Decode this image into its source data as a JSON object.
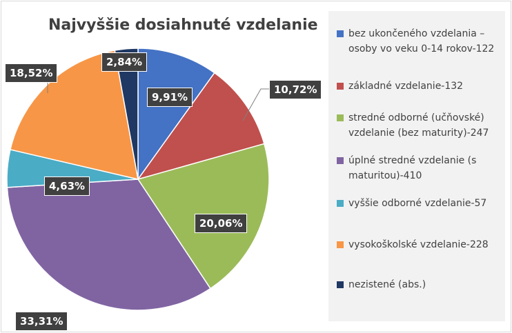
{
  "chart_data": {
    "type": "pie",
    "title": "Najvyššie dosiahnuté vzdelanie",
    "legend_position": "right",
    "slices": [
      {
        "name": "bez ukončeného vzdelania – osoby vo veku 0-14 rokov-122",
        "label": "9,91%",
        "value": 9.91,
        "color": "#4472c4"
      },
      {
        "name": "základné vzdelanie-132",
        "label": "10,72%",
        "value": 10.72,
        "color": "#c0504d"
      },
      {
        "name": "stredné odborné (učňovské) vzdelanie (bez maturity)-247",
        "label": "20,06%",
        "value": 20.06,
        "color": "#9bbb59"
      },
      {
        "name": "úplné stredné vzdelanie (s maturitou)-410",
        "label": "33,31%",
        "value": 33.31,
        "color": "#8064a2"
      },
      {
        "name": "vyššie odborné vzdelanie-57",
        "label": "4,63%",
        "value": 4.63,
        "color": "#4bacc6"
      },
      {
        "name": "vysokoškolské vzdelanie-228",
        "label": "18,52%",
        "value": 18.52,
        "color": "#f79646"
      },
      {
        "name": "nezistené (abs.)",
        "label": "2,84%",
        "value": 2.84,
        "color": "#1f3864"
      }
    ]
  }
}
